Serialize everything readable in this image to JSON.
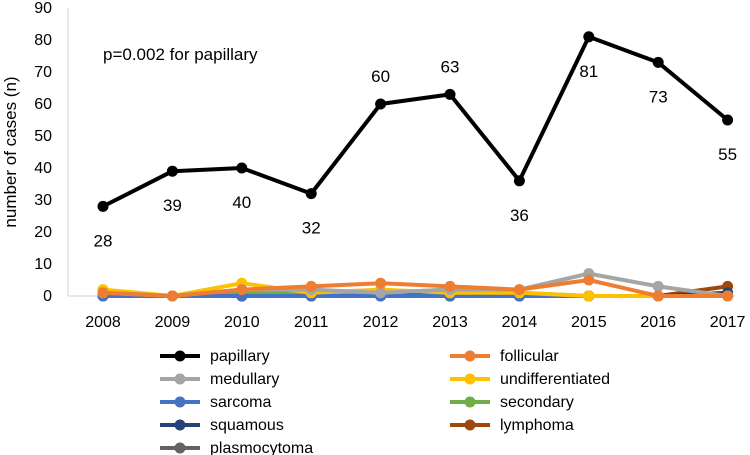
{
  "chart_data": {
    "type": "line",
    "x": [
      "2008",
      "2009",
      "2010",
      "2011",
      "2012",
      "2013",
      "2014",
      "2015",
      "2016",
      "2017"
    ],
    "ylabel": "number of cases (n)",
    "ylim": [
      0,
      90
    ],
    "yticks": [
      0,
      10,
      20,
      30,
      40,
      50,
      60,
      70,
      80,
      90
    ],
    "grid": false,
    "legend": "bottom",
    "annotation": "p=0.002 for papillary",
    "series": [
      {
        "name": "papillary",
        "color": "#000000",
        "values": [
          28,
          39,
          40,
          32,
          60,
          63,
          36,
          81,
          73,
          55
        ],
        "data_labels": [
          "28",
          "39",
          "40",
          "32",
          "60",
          "63",
          "36",
          "81",
          "73",
          "55"
        ]
      },
      {
        "name": "follicular",
        "color": "#ED7D31",
        "values": [
          1,
          0,
          2,
          3,
          4,
          3,
          2,
          5,
          0,
          0
        ]
      },
      {
        "name": "medullary",
        "color": "#A5A5A5",
        "values": [
          1,
          0,
          2,
          2,
          1,
          2,
          2,
          7,
          3,
          0
        ]
      },
      {
        "name": "undifferentiated",
        "color": "#FFC000",
        "values": [
          2,
          0,
          4,
          1,
          2,
          1,
          1,
          0,
          0,
          0
        ]
      },
      {
        "name": "sarcoma",
        "color": "#4472C4",
        "values": [
          0,
          0,
          0,
          0,
          0,
          0,
          0,
          0,
          0,
          0
        ]
      },
      {
        "name": "secondary",
        "color": "#70AD47",
        "values": [
          0,
          0,
          1,
          1,
          1,
          2,
          1,
          0,
          0,
          0
        ]
      },
      {
        "name": "squamous",
        "color": "#264478",
        "values": [
          1,
          0,
          0,
          0,
          1,
          0,
          0,
          0,
          0,
          1
        ]
      },
      {
        "name": "lymphoma",
        "color": "#9E480E",
        "values": [
          0,
          0,
          0,
          0,
          0,
          0,
          0,
          0,
          0,
          3
        ]
      },
      {
        "name": "plasmocytoma",
        "color": "#636363",
        "values": [
          0,
          0,
          0,
          0,
          0,
          0,
          0,
          0,
          0,
          0
        ]
      }
    ]
  }
}
